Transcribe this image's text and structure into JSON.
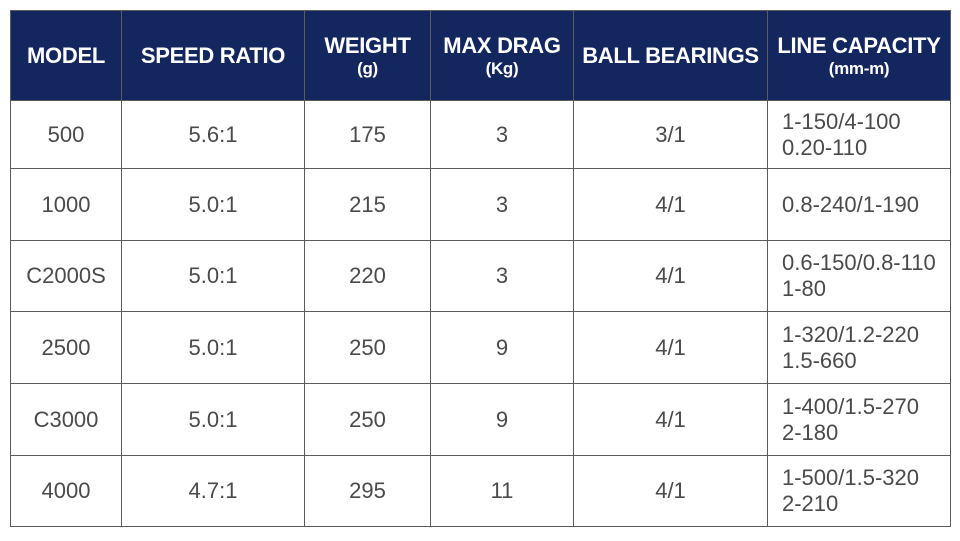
{
  "headers": {
    "model": {
      "label": "MODEL",
      "unit": ""
    },
    "speed_ratio": {
      "label": "SPEED RATIO",
      "unit": ""
    },
    "weight": {
      "label": "WEIGHT",
      "unit": "(g)"
    },
    "max_drag": {
      "label": "MAX DRAG",
      "unit": "(Kg)"
    },
    "ball_bearings": {
      "label": "BALL BEARINGS",
      "unit": ""
    },
    "line_capacity": {
      "label": "LINE CAPACITY",
      "unit": "(mm-m)"
    }
  },
  "rows": [
    {
      "model": "500",
      "speed_ratio": "5.6:1",
      "weight": "175",
      "max_drag": "3",
      "ball_bearings": "3/1",
      "line_capacity": [
        "1-150/4-100",
        "0.20-110"
      ]
    },
    {
      "model": "1000",
      "speed_ratio": "5.0:1",
      "weight": "215",
      "max_drag": "3",
      "ball_bearings": "4/1",
      "line_capacity": [
        "0.8-240/1-190"
      ]
    },
    {
      "model": "C2000S",
      "speed_ratio": "5.0:1",
      "weight": "220",
      "max_drag": "3",
      "ball_bearings": "4/1",
      "line_capacity": [
        "0.6-150/0.8-110",
        "1-80"
      ]
    },
    {
      "model": "2500",
      "speed_ratio": "5.0:1",
      "weight": "250",
      "max_drag": "9",
      "ball_bearings": "4/1",
      "line_capacity": [
        "1-320/1.2-220",
        "1.5-660"
      ]
    },
    {
      "model": "C3000",
      "speed_ratio": "5.0:1",
      "weight": "250",
      "max_drag": "9",
      "ball_bearings": "4/1",
      "line_capacity": [
        "1-400/1.5-270",
        "2-180"
      ]
    },
    {
      "model": "4000",
      "speed_ratio": "4.7:1",
      "weight": "295",
      "max_drag": "11",
      "ball_bearings": "4/1",
      "line_capacity": [
        "1-500/1.5-320",
        "2-210"
      ]
    }
  ],
  "colors": {
    "header_bg": "#14265e",
    "header_text": "#ffffff",
    "cell_text": "#4a4a4a",
    "border": "#5b5b5b"
  }
}
